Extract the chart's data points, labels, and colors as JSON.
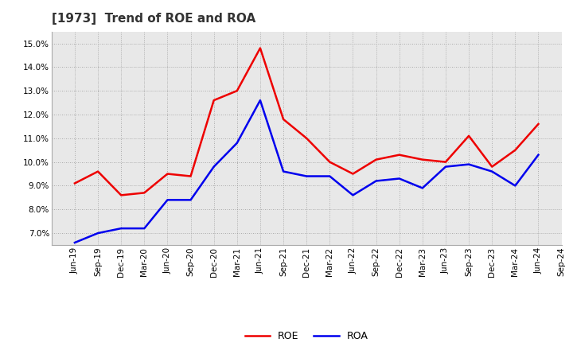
{
  "title": "[1973]  Trend of ROE and ROA",
  "labels": [
    "Jun-19",
    "Sep-19",
    "Dec-19",
    "Mar-20",
    "Jun-20",
    "Sep-20",
    "Dec-20",
    "Mar-21",
    "Jun-21",
    "Sep-21",
    "Dec-21",
    "Mar-22",
    "Jun-22",
    "Sep-22",
    "Dec-22",
    "Mar-23",
    "Jun-23",
    "Sep-23",
    "Dec-23",
    "Mar-24",
    "Jun-24",
    "Sep-24"
  ],
  "ROE": [
    9.1,
    9.6,
    8.6,
    8.7,
    9.5,
    9.4,
    12.6,
    13.0,
    14.8,
    11.8,
    11.0,
    10.0,
    9.5,
    10.1,
    10.3,
    10.1,
    10.0,
    11.1,
    9.8,
    10.5,
    11.6,
    null
  ],
  "ROA": [
    6.6,
    7.0,
    7.2,
    7.2,
    8.4,
    8.4,
    9.8,
    10.8,
    12.6,
    9.6,
    9.4,
    9.4,
    8.6,
    9.2,
    9.3,
    8.9,
    9.8,
    9.9,
    9.6,
    9.0,
    10.3,
    null
  ],
  "ylim_min": 6.5,
  "ylim_max": 15.5,
  "yticks": [
    7.0,
    8.0,
    9.0,
    10.0,
    11.0,
    12.0,
    13.0,
    14.0,
    15.0
  ],
  "roe_color": "#ee0000",
  "roa_color": "#0000ee",
  "bg_color": "#ffffff",
  "plot_bg_color": "#e8e8e8",
  "grid_color": "#999999",
  "title_fontsize": 11,
  "axis_fontsize": 7.5,
  "legend_fontsize": 9,
  "linewidth": 1.8
}
